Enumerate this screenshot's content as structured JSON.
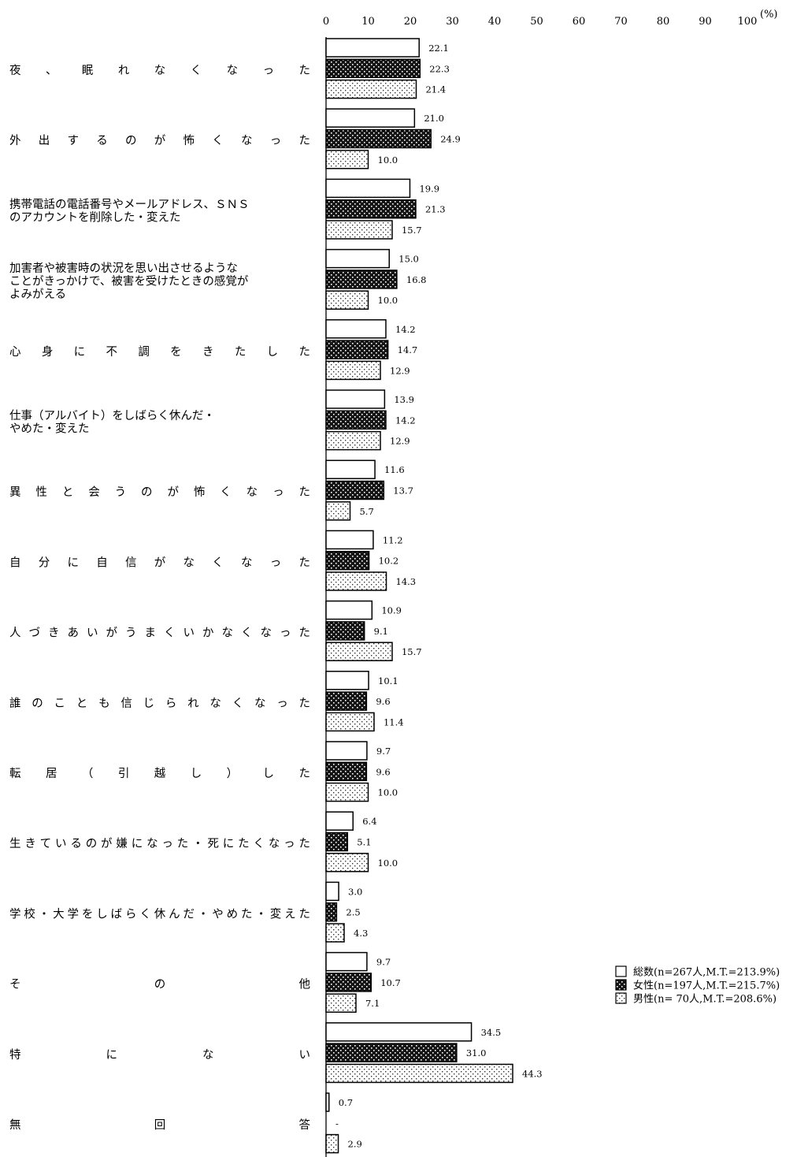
{
  "chart_data": {
    "type": "bar",
    "orientation": "horizontal",
    "unit": "(%)",
    "xlim": [
      0,
      100
    ],
    "x_ticks": [
      "0",
      "10",
      "20",
      "30",
      "40",
      "50",
      "60",
      "70",
      "80",
      "90",
      "100"
    ],
    "legend_position": "right",
    "categories": [
      [
        "夜、眠れなくなった"
      ],
      [
        "外出するのが怖くなった"
      ],
      [
        "携帯電話の電話番号やメールアドレス、ＳＮＳ",
        "のアカウントを削除した・変えた"
      ],
      [
        "加害者や被害時の状況を思い出させるような",
        "ことがきっかけで、被害を受けたときの感覚が",
        "よみがえる"
      ],
      [
        "心身に不調をきたした"
      ],
      [
        "仕事（アルバイト）をしばらく休んだ・",
        "やめた・変えた"
      ],
      [
        "異性と会うのが怖くなった"
      ],
      [
        "自分に自信がなくなった"
      ],
      [
        "人づきあいがうまくいかなくなった"
      ],
      [
        "誰のことも信じられなくなった"
      ],
      [
        "転居（引越し）した"
      ],
      [
        "生きているのが嫌になった・死にたくなった"
      ],
      [
        "学校・大学をしばらく休んだ・やめた・変えた"
      ],
      [
        "その他"
      ],
      [
        "特にない"
      ],
      [
        "無回答"
      ]
    ],
    "series": [
      {
        "name": "総数(n=267人,M.T.=213.9%)",
        "pattern": "white",
        "values": [
          22.1,
          21.0,
          19.9,
          15.0,
          14.2,
          13.9,
          11.6,
          11.2,
          10.9,
          10.1,
          9.7,
          6.4,
          3.0,
          9.7,
          34.5,
          0.7
        ],
        "labels": [
          "22.1",
          "21.0",
          "19.9",
          "15.0",
          "14.2",
          "13.9",
          "11.6",
          "11.2",
          "10.9",
          "10.1",
          "9.7",
          "6.4",
          "3.0",
          "9.7",
          "34.5",
          "0.7"
        ]
      },
      {
        "name": "女性(n=197人,M.T.=215.7%)",
        "pattern": "dark",
        "values": [
          22.3,
          24.9,
          21.3,
          16.8,
          14.7,
          14.2,
          13.7,
          10.2,
          9.1,
          9.6,
          9.6,
          5.1,
          2.5,
          10.7,
          31.0,
          0
        ],
        "labels": [
          "22.3",
          "24.9",
          "21.3",
          "16.8",
          "14.7",
          "14.2",
          "13.7",
          "10.2",
          "9.1",
          "9.6",
          "9.6",
          "5.1",
          "2.5",
          "10.7",
          "31.0",
          "-"
        ]
      },
      {
        "name": "男性(n= 70人,M.T.=208.6%)",
        "pattern": "light",
        "values": [
          21.4,
          10.0,
          15.7,
          10.0,
          12.9,
          12.9,
          5.7,
          14.3,
          15.7,
          11.4,
          10.0,
          10.0,
          4.3,
          7.1,
          44.3,
          2.9
        ],
        "labels": [
          "21.4",
          "10.0",
          "15.7",
          "10.0",
          "12.9",
          "12.9",
          "5.7",
          "14.3",
          "15.7",
          "11.4",
          "10.0",
          "10.0",
          "4.3",
          "7.1",
          "44.3",
          "2.9"
        ]
      }
    ]
  }
}
